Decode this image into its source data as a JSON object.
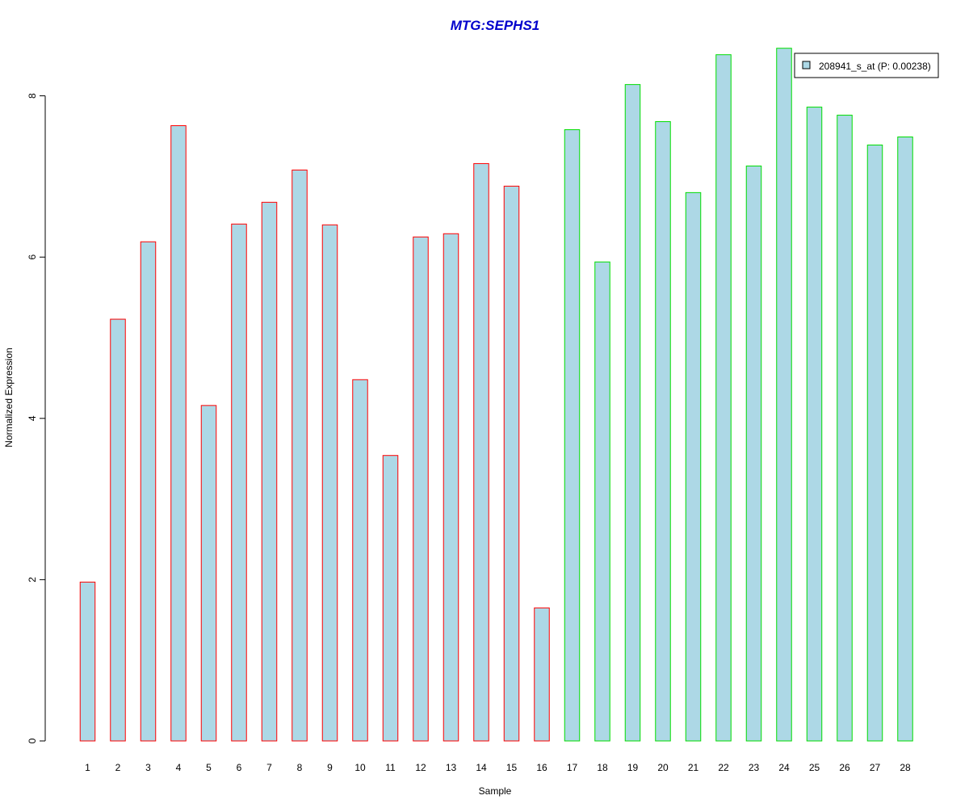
{
  "chart_data": {
    "type": "bar",
    "title": "MTG:SEPHS1",
    "xlabel": "Sample",
    "ylabel": "Normalized Expression",
    "categories": [
      "1",
      "2",
      "3",
      "4",
      "5",
      "6",
      "7",
      "8",
      "9",
      "10",
      "11",
      "12",
      "13",
      "14",
      "15",
      "16",
      "17",
      "18",
      "19",
      "20",
      "21",
      "22",
      "23",
      "24",
      "25",
      "26",
      "27",
      "28"
    ],
    "series": [
      {
        "name": "208941_s_at (P: 0.00238)",
        "values": [
          1.97,
          5.23,
          6.19,
          7.63,
          4.16,
          6.41,
          6.68,
          7.08,
          6.4,
          4.48,
          3.54,
          6.25,
          6.29,
          7.16,
          6.88,
          1.65,
          7.58,
          5.94,
          8.14,
          7.68,
          6.8,
          8.51,
          7.13,
          8.59,
          7.86,
          7.76,
          7.39,
          7.49
        ]
      }
    ],
    "group_outline": [
      "red",
      "red",
      "red",
      "red",
      "red",
      "red",
      "red",
      "red",
      "red",
      "red",
      "red",
      "red",
      "red",
      "red",
      "red",
      "red",
      "green",
      "green",
      "green",
      "green",
      "green",
      "green",
      "green",
      "green",
      "green",
      "green",
      "green",
      "green"
    ],
    "ylim": [
      0,
      8.6
    ],
    "yticks": [
      0,
      2,
      4,
      6,
      8
    ],
    "grid": false,
    "legend_position": "top-right",
    "colors": {
      "bar_fill": "#ADD8E6",
      "outline_red": "#FF0000",
      "outline_green": "#00DD00",
      "title": "#0000CC",
      "axis": "#000000"
    }
  }
}
